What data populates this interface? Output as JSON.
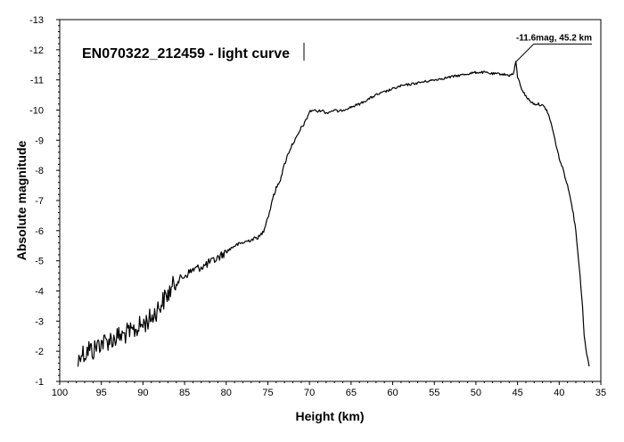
{
  "chart_data": {
    "type": "line",
    "title": "EN070322_212459 - light curve",
    "xlabel": "Height (km)",
    "ylabel": "Absolute magnitude",
    "xlim": [
      100,
      35
    ],
    "ylim": [
      -1,
      -13
    ],
    "x_ticks": [
      "100",
      "95",
      "90",
      "85",
      "80",
      "75",
      "70",
      "65",
      "60",
      "55",
      "50",
      "45",
      "40",
      "35"
    ],
    "y_ticks": [
      "-13",
      "-12",
      "-11",
      "-10",
      "-9",
      "-8",
      "-7",
      "-6",
      "-5",
      "-4",
      "-3",
      "-2",
      "-1"
    ],
    "grid": false,
    "annotation": {
      "text": "-11.6mag, 45.2 km",
      "x": 45.2,
      "y": -11.6
    },
    "series": [
      {
        "color": "#000000",
        "x": [
          97.8,
          97.5,
          97.0,
          96.5,
          96.0,
          95.5,
          95.0,
          94.5,
          94.0,
          93.5,
          93.0,
          92.5,
          92.0,
          91.5,
          91.0,
          90.5,
          90.0,
          89.5,
          89.0,
          88.5,
          88.0,
          87.5,
          87.0,
          86.5,
          86.0,
          85.5,
          85.0,
          84.5,
          84.0,
          83.5,
          83.0,
          82.5,
          82.0,
          81.5,
          81.0,
          80.5,
          80.0,
          79.5,
          79.0,
          78.5,
          78.0,
          77.5,
          77.0,
          76.5,
          76.0,
          75.5,
          75.2,
          75.0,
          74.8,
          74.5,
          74.0,
          73.5,
          73.0,
          72.5,
          72.0,
          71.5,
          71.0,
          70.5,
          70.0,
          69.5,
          69.0,
          68.5,
          68.0,
          67.5,
          67.0,
          66.5,
          66.0,
          65.0,
          64.0,
          63.0,
          62.0,
          61.0,
          60.0,
          59.0,
          58.0,
          57.0,
          56.0,
          55.0,
          54.0,
          53.0,
          52.0,
          51.0,
          50.0,
          49.0,
          48.0,
          47.0,
          46.0,
          45.5,
          45.2,
          45.0,
          44.5,
          44.0,
          43.5,
          43.0,
          42.5,
          42.0,
          41.5,
          41.0,
          40.5,
          40.0,
          39.5,
          39.0,
          38.5,
          38.0,
          37.5,
          37.2,
          37.0,
          36.8,
          36.6,
          36.4
        ],
        "y": [
          -1.6,
          -2.0,
          -1.9,
          -2.1,
          -2.0,
          -2.2,
          -2.3,
          -2.3,
          -2.4,
          -2.4,
          -2.5,
          -2.5,
          -2.6,
          -2.6,
          -2.7,
          -2.8,
          -2.9,
          -3.0,
          -3.1,
          -3.3,
          -3.5,
          -3.7,
          -3.9,
          -4.1,
          -4.3,
          -4.4,
          -4.5,
          -4.6,
          -4.7,
          -4.75,
          -4.8,
          -4.85,
          -4.95,
          -5.0,
          -5.1,
          -5.2,
          -5.3,
          -5.4,
          -5.5,
          -5.55,
          -5.6,
          -5.65,
          -5.7,
          -5.75,
          -5.8,
          -6.0,
          -6.3,
          -6.45,
          -6.6,
          -7.0,
          -7.4,
          -7.7,
          -8.2,
          -8.6,
          -8.9,
          -9.1,
          -9.4,
          -9.6,
          -9.95,
          -10.0,
          -9.95,
          -10.0,
          -9.9,
          -9.95,
          -10.0,
          -9.95,
          -10.0,
          -10.1,
          -10.2,
          -10.35,
          -10.5,
          -10.6,
          -10.7,
          -10.8,
          -10.85,
          -10.9,
          -10.95,
          -11.0,
          -11.05,
          -11.1,
          -11.15,
          -11.2,
          -11.25,
          -11.25,
          -11.2,
          -11.2,
          -11.15,
          -11.2,
          -11.6,
          -11.1,
          -10.7,
          -10.45,
          -10.3,
          -10.2,
          -10.2,
          -10.15,
          -10.0,
          -9.6,
          -9.0,
          -8.4,
          -8.0,
          -7.5,
          -6.9,
          -6.0,
          -4.5,
          -3.5,
          -2.5,
          -2.1,
          -1.8,
          -1.5
        ]
      }
    ]
  }
}
